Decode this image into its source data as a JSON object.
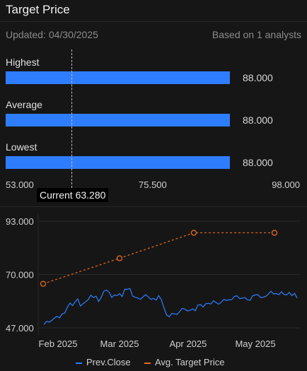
{
  "header": {
    "title": "Target Price",
    "updated_label": "Updated:",
    "updated_date": "04/30/2025",
    "analysts_text": "Based on 1 analysts"
  },
  "range": {
    "axis_min": 53.0,
    "axis_max": 98.0,
    "bars": [
      {
        "label": "Highest",
        "value": 88.0,
        "value_text": "88.000"
      },
      {
        "label": "Average",
        "value": 88.0,
        "value_text": "88.000"
      },
      {
        "label": "Lowest",
        "value": 88.0,
        "value_text": "88.000"
      }
    ],
    "ticks": [
      "53.000",
      "75.500",
      "98.000"
    ],
    "current_value": 63.28,
    "current_label": "Current 63.280",
    "bar_color": "#2f7dff"
  },
  "chart_data": {
    "type": "line",
    "x_ticks": [
      "Feb 2025",
      "Mar 2025",
      "Apr 2025",
      "May 2025"
    ],
    "y_ticks": [
      "93.000",
      "70.000",
      "47.000"
    ],
    "ylim": [
      47,
      93
    ],
    "series": [
      {
        "name": "Prev.Close",
        "color": "#2f7dff",
        "style": "solid",
        "values": [
          48.4,
          49.8,
          49.5,
          50.2,
          51.2,
          52.0,
          51.3,
          53.0,
          53.4,
          55.9,
          57.7,
          56.6,
          58.3,
          59.5,
          56.4,
          57.4,
          58.3,
          59.2,
          61.1,
          60.1,
          60.7,
          58.4,
          60.2,
          62.8,
          63.3,
          62.4,
          60.1,
          61.2,
          60.9,
          61.8,
          60.5,
          63.7,
          63.6,
          64.0,
          60.7,
          60.2,
          59.9,
          59.3,
          60.4,
          61.3,
          60.4,
          59.3,
          59.7,
          59.0,
          60.9,
          59.2,
          55.6,
          52.6,
          51.8,
          53.2,
          53.1,
          52.8,
          54.0,
          55.4,
          55.1,
          54.3,
          54.6,
          55.2,
          54.4,
          56.8,
          57.1,
          56.0,
          57.4,
          57.6,
          57.3,
          58.7,
          57.9,
          57.2,
          58.2,
          59.3,
          58.8,
          59.1,
          59.2,
          60.6,
          60.8,
          59.6,
          59.8,
          60.1,
          59.1,
          58.9,
          60.9,
          61.2,
          61.3,
          60.1,
          60.2,
          60.6,
          61.6,
          62.8,
          61.6,
          61.8,
          61.3,
          62.6,
          61.4,
          61.2,
          62.3,
          60.9,
          61.9,
          59.9
        ]
      },
      {
        "name": "Avg. Target Price",
        "color": "#e86b1f",
        "style": "dashed",
        "points": [
          {
            "x": "Jan 2025",
            "y": 66.0
          },
          {
            "x": "Mar 2025",
            "y": 77.0
          },
          {
            "x": "Apr 2025",
            "y": 88.0
          },
          {
            "x": "May 2025",
            "y": 88.0
          }
        ]
      }
    ],
    "legend": [
      "Prev.Close",
      "Avg. Target Price"
    ],
    "legend_position": "bottom",
    "grid": "horizontal"
  }
}
